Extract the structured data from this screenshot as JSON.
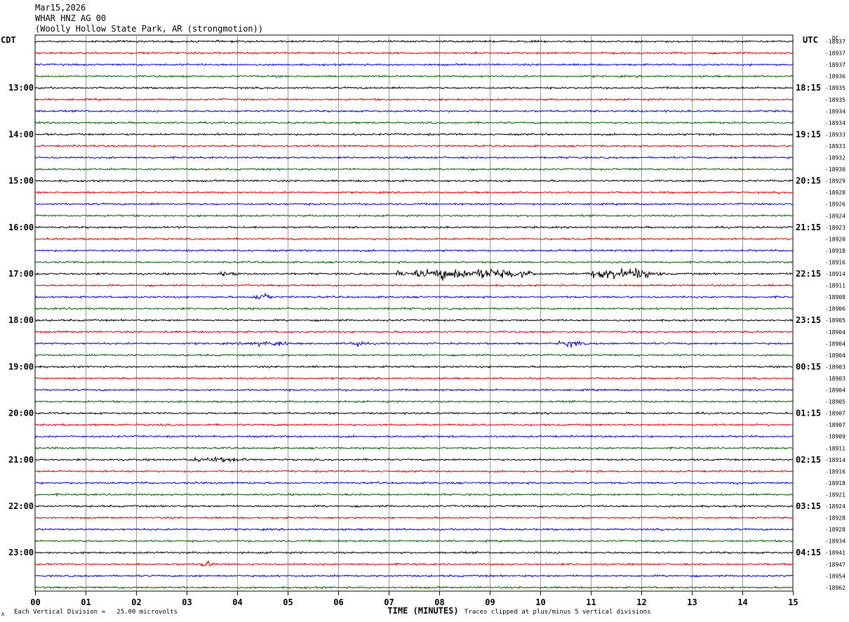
{
  "header": {
    "date": "Mar15,2026",
    "channel": "WHAR HNZ AG 00",
    "station": "(Woolly Hollow State Park, AR (strongmotion))"
  },
  "left_timezone": "CDT",
  "right_timezone": "UTC",
  "dc_label": "DC",
  "footer": {
    "scale": "Each Vertical Division =   25.00 microvolts",
    "clip_note": "Traces clipped at plus/minus 5 vertical divisions",
    "corner_mark": "A"
  },
  "colors": {
    "trace_cycle": [
      "#000000",
      "#e00000",
      "#0000e0",
      "#006000"
    ],
    "grid": "#9a9a9a"
  },
  "chart_data": {
    "type": "line",
    "title": "",
    "xlabel": "TIME (MINUTES)",
    "xlim": [
      0,
      15
    ],
    "x_ticks": [
      "00",
      "01",
      "02",
      "03",
      "04",
      "05",
      "06",
      "07",
      "08",
      "09",
      "10",
      "11",
      "12",
      "13",
      "14",
      "15"
    ],
    "grid": true,
    "rows_per_hour": 4,
    "left_hour_labels": [
      "13:00",
      "14:00",
      "15:00",
      "16:00",
      "17:00",
      "18:00",
      "19:00",
      "20:00",
      "21:00",
      "22:00",
      "23:00"
    ],
    "right_hour_labels": [
      "18:15",
      "19:15",
      "20:15",
      "21:15",
      "22:15",
      "23:15",
      "00:15",
      "01:15",
      "02:15",
      "03:15",
      "04:15"
    ],
    "dc_offsets": [
      "-18937",
      "-18937",
      "-18937",
      "-18936",
      "-18935",
      "-18935",
      "-18934",
      "-18934",
      "-18933",
      "-18933",
      "-18932",
      "-18930",
      "-18929",
      "-18928",
      "-18926",
      "-18924",
      "-18923",
      "-18920",
      "-18918",
      "-18916",
      "-18914",
      "-18911",
      "-18908",
      "-18906",
      "-18905",
      "-18904",
      "-18904",
      "-18904",
      "-18903",
      "-18903",
      "-18904",
      "-18905",
      "-18907",
      "-18907",
      "-18909",
      "-18911",
      "-18914",
      "-18916",
      "-18918",
      "-18921",
      "-18924",
      "-18928",
      "-18928",
      "-18934",
      "-18941",
      "-18947",
      "-18954",
      "-18962"
    ],
    "events": [
      {
        "row": 20,
        "start_min": 7.1,
        "end_min": 9.9,
        "amplitude": 3.2
      },
      {
        "row": 20,
        "start_min": 10.9,
        "end_min": 12.4,
        "amplitude": 3.4
      },
      {
        "row": 20,
        "start_min": 3.6,
        "end_min": 4.1,
        "amplitude": 1.2
      },
      {
        "row": 22,
        "start_min": 4.3,
        "end_min": 4.7,
        "amplitude": 2.2
      },
      {
        "row": 26,
        "start_min": 4.0,
        "end_min": 5.2,
        "amplitude": 1.3
      },
      {
        "row": 26,
        "start_min": 6.25,
        "end_min": 6.55,
        "amplitude": 2.6
      },
      {
        "row": 26,
        "start_min": 10.3,
        "end_min": 10.9,
        "amplitude": 1.6
      },
      {
        "row": 36,
        "start_min": 2.9,
        "end_min": 4.3,
        "amplitude": 1.3
      },
      {
        "row": 45,
        "start_min": 3.25,
        "end_min": 3.55,
        "amplitude": 1.6
      },
      {
        "row": 38,
        "start_min": 13.7,
        "end_min": 13.95,
        "amplitude": 1.1
      }
    ]
  }
}
